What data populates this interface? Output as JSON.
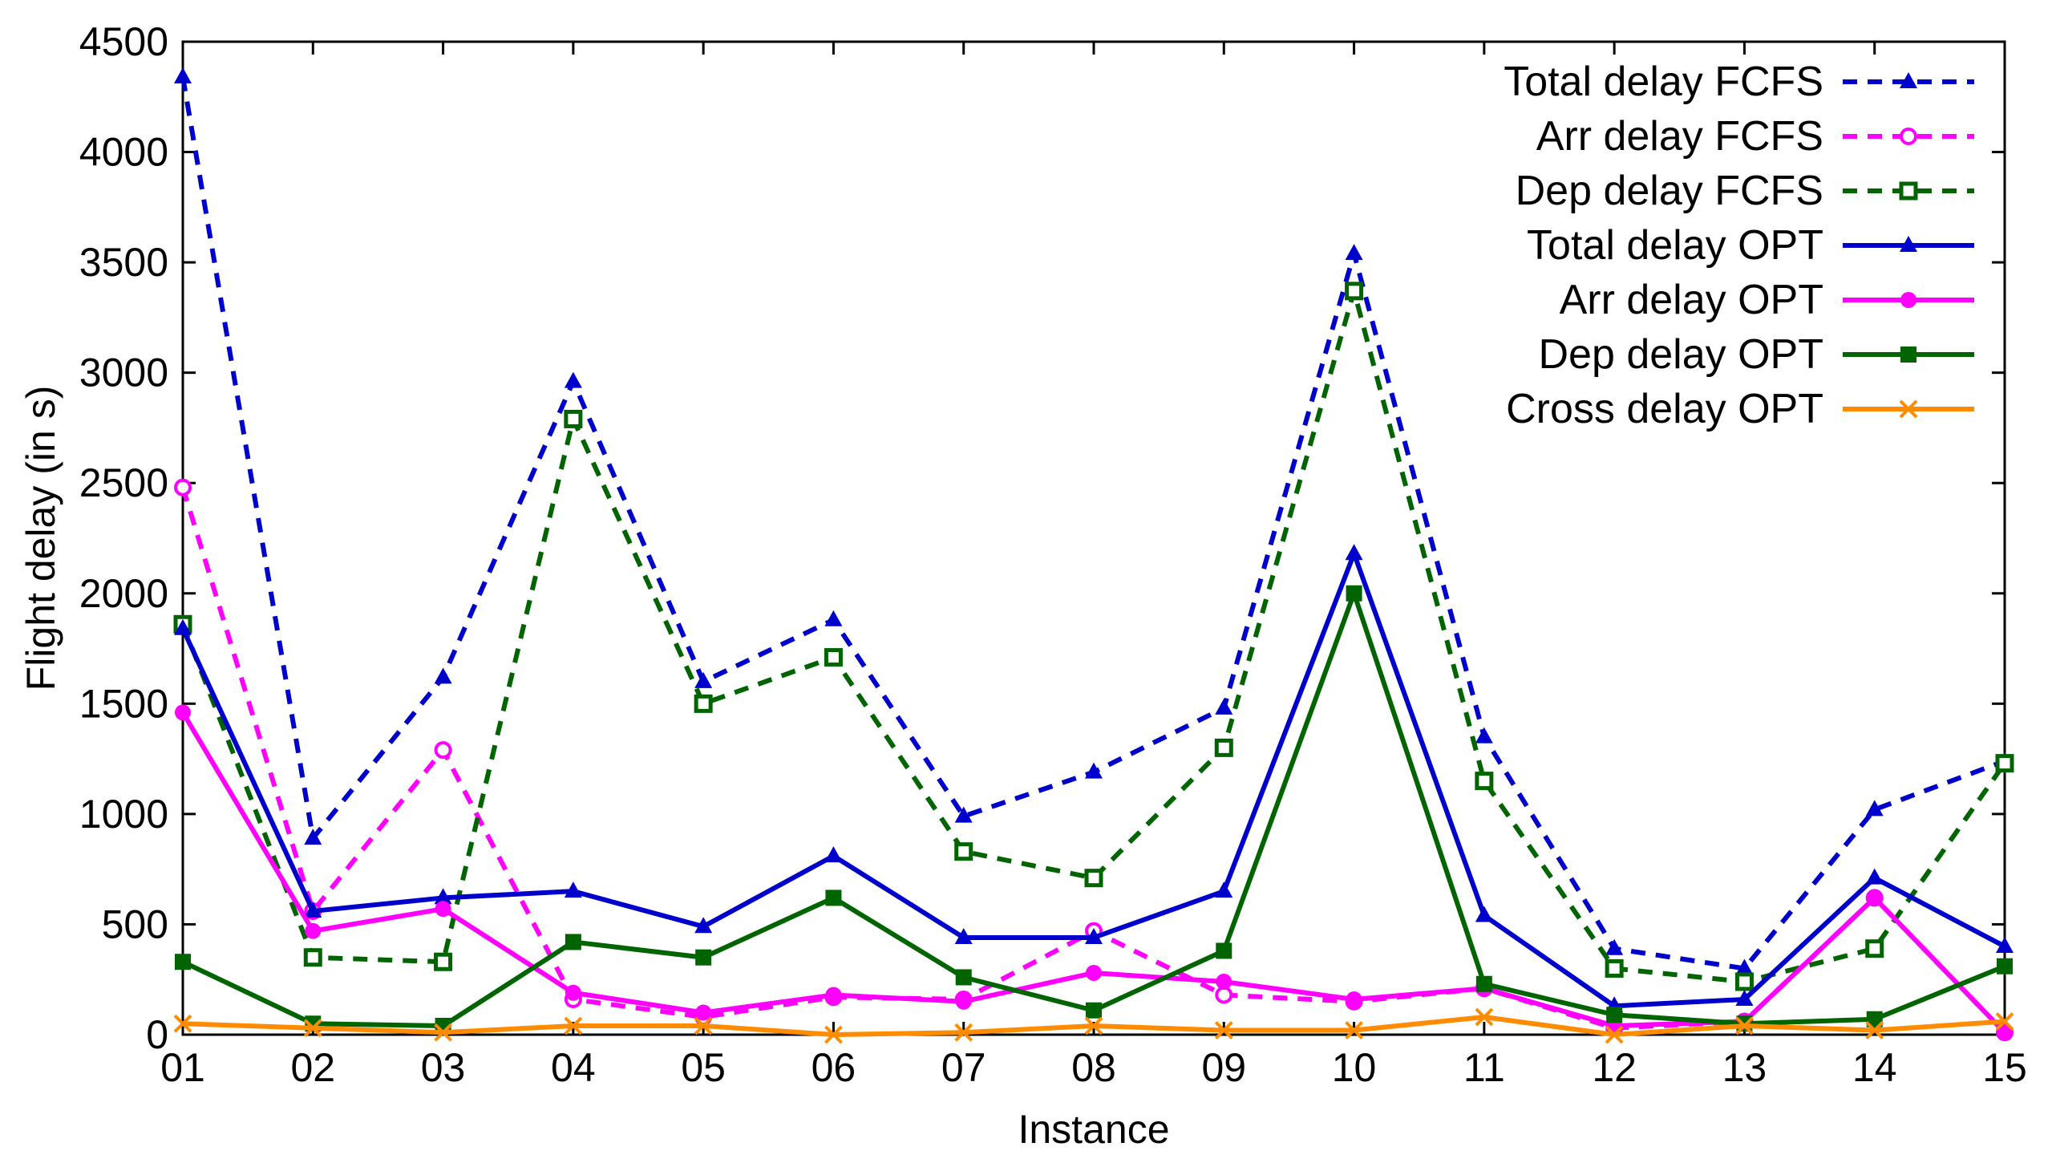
{
  "chart_data": {
    "type": "line",
    "xlabel": "Instance",
    "ylabel": "Flight delay (in s)",
    "ylim": [
      0,
      4500
    ],
    "yticks": [
      0,
      500,
      1000,
      1500,
      2000,
      2500,
      3000,
      3500,
      4000,
      4500
    ],
    "grid": false,
    "legend_position": "top-right",
    "categories": [
      "01",
      "02",
      "03",
      "04",
      "05",
      "06",
      "07",
      "08",
      "09",
      "10",
      "11",
      "12",
      "13",
      "14",
      "15"
    ],
    "series": [
      {
        "name": "Total delay FCFS",
        "color": "#0000cc",
        "dash": true,
        "marker": "triangle",
        "values": [
          4340,
          890,
          1620,
          2960,
          1600,
          1880,
          990,
          1190,
          1480,
          3540,
          1350,
          390,
          300,
          1020,
          1240
        ]
      },
      {
        "name": "Arr delay FCFS",
        "color": "#ff00ff",
        "dash": true,
        "marker": "circle-open",
        "values": [
          2480,
          560,
          1290,
          160,
          80,
          170,
          160,
          470,
          180,
          150,
          210,
          30,
          60,
          620,
          10
        ]
      },
      {
        "name": "Dep delay FCFS",
        "color": "#006400",
        "dash": true,
        "marker": "square-open",
        "values": [
          1860,
          350,
          330,
          2790,
          1500,
          1710,
          830,
          710,
          1300,
          3370,
          1150,
          300,
          240,
          390,
          1230
        ]
      },
      {
        "name": "Total delay OPT",
        "color": "#0000cc",
        "dash": false,
        "marker": "triangle",
        "values": [
          1840,
          560,
          620,
          650,
          490,
          810,
          440,
          440,
          650,
          2180,
          540,
          130,
          160,
          710,
          400
        ]
      },
      {
        "name": "Arr delay OPT",
        "color": "#ff00ff",
        "dash": false,
        "marker": "circle",
        "values": [
          1460,
          470,
          570,
          190,
          100,
          180,
          150,
          280,
          240,
          160,
          210,
          40,
          60,
          620,
          10
        ]
      },
      {
        "name": "Dep delay OPT",
        "color": "#006400",
        "dash": false,
        "marker": "square",
        "values": [
          330,
          50,
          40,
          420,
          350,
          620,
          260,
          110,
          380,
          2000,
          230,
          90,
          50,
          70,
          310
        ]
      },
      {
        "name": "Cross delay OPT",
        "color": "#ff8c00",
        "dash": false,
        "marker": "x",
        "values": [
          50,
          30,
          10,
          40,
          40,
          0,
          10,
          40,
          20,
          20,
          80,
          0,
          40,
          20,
          60
        ]
      }
    ]
  }
}
